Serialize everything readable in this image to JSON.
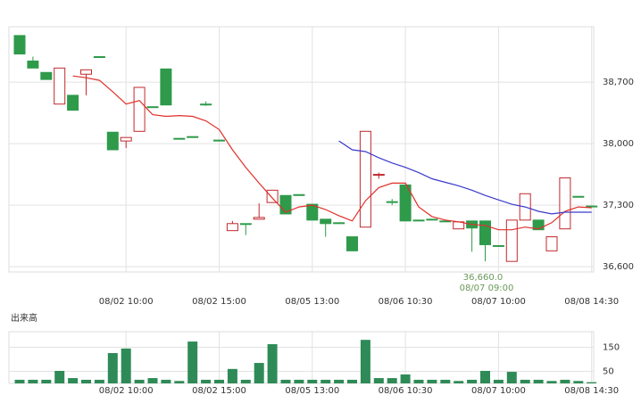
{
  "chart_data": {
    "type": "candlestick",
    "categories": [
      null,
      null,
      null,
      null,
      null,
      null,
      null,
      null,
      "08/02 10:00",
      null,
      null,
      null,
      null,
      null,
      null,
      "08/02 15:00",
      null,
      null,
      null,
      null,
      null,
      null,
      "08/05 13:00",
      null,
      null,
      null,
      null,
      null,
      null,
      "08/06 10:30",
      null,
      null,
      null,
      null,
      null,
      null,
      "08/07 10:00",
      null,
      null,
      null,
      null,
      null,
      null,
      "08/08 14:30"
    ],
    "open": [
      39230,
      38940,
      38810,
      38450,
      38550,
      38790,
      38990,
      38130,
      38030,
      38140,
      38420,
      38850,
      38060,
      38080,
      38450,
      38040,
      37010,
      37090,
      37140,
      37330,
      37410,
      37420,
      37310,
      37140,
      37100,
      36940,
      37050,
      37640,
      37340,
      37530,
      37130,
      37140,
      37120,
      37030,
      37120,
      37120,
      36840,
      36660,
      37130,
      37130,
      36780,
      37030,
      37400,
      37290
    ],
    "high": [
      39230,
      38990,
      38810,
      38860,
      38550,
      38840,
      38990,
      38130,
      38070,
      38640,
      38420,
      38850,
      38060,
      38080,
      38480,
      38040,
      37120,
      37090,
      37320,
      37470,
      37410,
      37420,
      37310,
      37140,
      37100,
      36940,
      38140,
      37670,
      37370,
      37530,
      37130,
      37140,
      37120,
      37110,
      37120,
      37120,
      36840,
      37130,
      37430,
      37130,
      36940,
      37610,
      37400,
      37290
    ],
    "low": [
      39020,
      38860,
      38730,
      38450,
      38380,
      38550,
      38990,
      37930,
      37950,
      38140,
      38420,
      38440,
      38060,
      38080,
      38430,
      38040,
      37010,
      36960,
      37140,
      37330,
      37200,
      37420,
      37130,
      36940,
      37100,
      36780,
      37050,
      37600,
      37300,
      37120,
      37130,
      37140,
      37120,
      37030,
      36770,
      36660,
      36840,
      36660,
      37130,
      37020,
      36780,
      37030,
      37400,
      37290
    ],
    "close": [
      39020,
      38860,
      38730,
      38860,
      38380,
      38840,
      38990,
      37930,
      38070,
      38640,
      38420,
      38440,
      38060,
      38080,
      38450,
      38040,
      37090,
      37090,
      37160,
      37470,
      37200,
      37420,
      37130,
      37090,
      37100,
      36780,
      38140,
      37650,
      37340,
      37120,
      37130,
      37140,
      37120,
      37110,
      37040,
      36850,
      36840,
      37130,
      37430,
      37020,
      36940,
      37610,
      37400,
      37290
    ],
    "up_color": "#c0282d",
    "down_color": "#2e9a4a",
    "series": [
      {
        "color": "#e0302a",
        "values": [
          null,
          null,
          null,
          null,
          38770,
          38750,
          38720,
          38590,
          38450,
          38490,
          38330,
          38310,
          38320,
          38310,
          38260,
          38160,
          37930,
          37730,
          37550,
          37380,
          37220,
          37280,
          37300,
          37250,
          37180,
          37120,
          37350,
          37500,
          37550,
          37550,
          37280,
          37170,
          37130,
          37110,
          37080,
          37070,
          37020,
          37020,
          37050,
          37030,
          37100,
          37230,
          37280,
          37270
        ]
      },
      {
        "color": "#3a3acc",
        "values": [
          null,
          null,
          null,
          null,
          null,
          null,
          null,
          null,
          null,
          null,
          null,
          null,
          null,
          null,
          null,
          null,
          null,
          null,
          null,
          null,
          null,
          null,
          null,
          null,
          38030,
          37930,
          37910,
          37840,
          37780,
          37730,
          37670,
          37600,
          37560,
          37520,
          37470,
          37410,
          37360,
          37310,
          37280,
          37230,
          37200,
          37220,
          37220,
          37220
        ]
      }
    ],
    "ylim": [
      36540,
      39330
    ],
    "yticks": [
      {
        "value": 36600,
        "label": "36,600"
      },
      {
        "value": 37300,
        "label": "37,300"
      },
      {
        "value": 38000,
        "label": "38,000"
      },
      {
        "value": 38700,
        "label": "38,700"
      }
    ],
    "annotation": {
      "price": "36,660.0",
      "time": "08/07 09:00"
    },
    "volume": {
      "label": "出来高",
      "color": "#2e8b57",
      "values": [
        15,
        15,
        15,
        52,
        22,
        15,
        15,
        126,
        145,
        15,
        22,
        15,
        10,
        174,
        15,
        15,
        60,
        15,
        85,
        163,
        15,
        15,
        15,
        15,
        15,
        15,
        181,
        22,
        22,
        37,
        15,
        15,
        15,
        10,
        15,
        52,
        15,
        48,
        15,
        15,
        10,
        15,
        10,
        5
      ],
      "ylim": [
        0,
        215
      ],
      "yticks": [
        50,
        150
      ]
    }
  }
}
